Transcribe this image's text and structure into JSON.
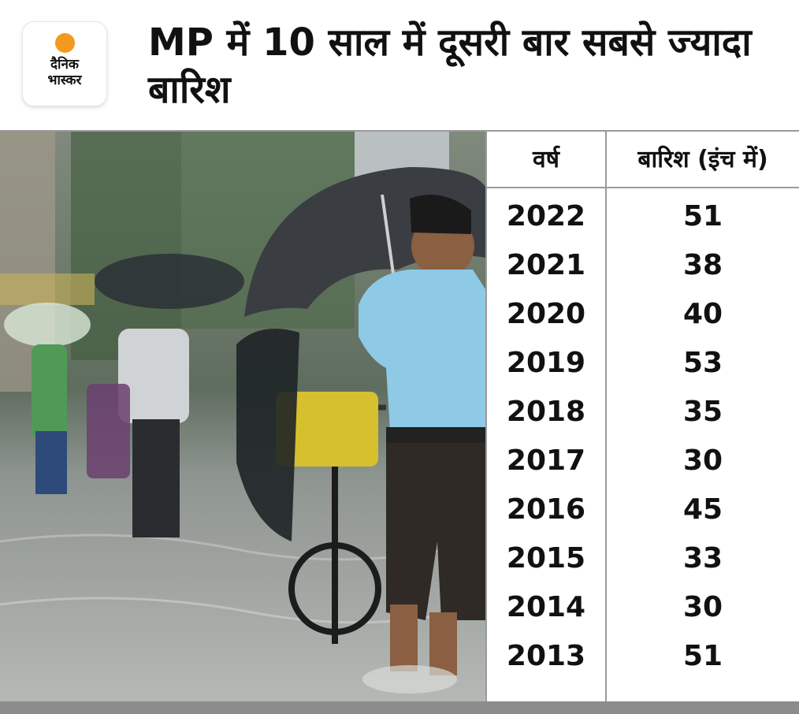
{
  "logo": {
    "line1": "दैनिक",
    "line2": "भास्कर"
  },
  "title": "MP में 10 साल में दूसरी बार सबसे ज्यादा बारिश",
  "table": {
    "headers": {
      "year": "वर्ष",
      "rain": "बारिश (इंच में)"
    },
    "rows": [
      {
        "year": "2022",
        "rain": "51"
      },
      {
        "year": "2021",
        "rain": "38"
      },
      {
        "year": "2020",
        "rain": "40"
      },
      {
        "year": "2019",
        "rain": "53"
      },
      {
        "year": "2018",
        "rain": "35"
      },
      {
        "year": "2017",
        "rain": "30"
      },
      {
        "year": "2016",
        "rain": "45"
      },
      {
        "year": "2015",
        "rain": "33"
      },
      {
        "year": "2014",
        "rain": "30"
      },
      {
        "year": "2013",
        "rain": "51"
      }
    ]
  },
  "colors": {
    "brand_orange": "#f39a1e",
    "divider": "#9a9a9a",
    "shirt": "#8ec9e6"
  }
}
